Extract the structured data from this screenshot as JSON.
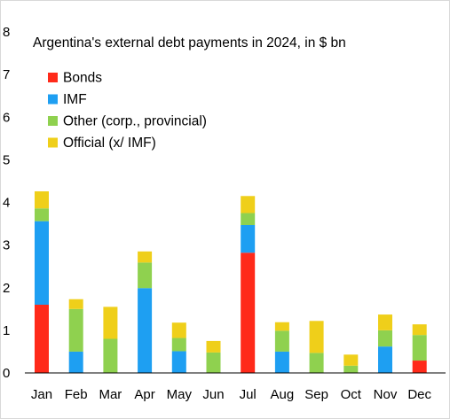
{
  "chart_data": {
    "type": "bar",
    "stacked": true,
    "title": "Argentina's  external debt payments in 2024, in $ bn",
    "xlabel": "",
    "ylabel": "",
    "ylim": [
      0,
      8
    ],
    "yticks": [
      0,
      1,
      2,
      3,
      4,
      5,
      6,
      7,
      8
    ],
    "grid": false,
    "legend_position": "top-left",
    "categories": [
      "Jan",
      "Feb",
      "Mar",
      "Apr",
      "May",
      "Jun",
      "Jul",
      "Aug",
      "Sep",
      "Oct",
      "Nov",
      "Dec"
    ],
    "series": [
      {
        "name": "Bonds",
        "color": "#ff2a1a",
        "values": [
          1.6,
          0,
          0,
          0,
          0,
          0,
          2.82,
          0,
          0,
          0,
          0,
          0.29
        ]
      },
      {
        "name": "IMF",
        "color": "#1e9ff2",
        "values": [
          1.96,
          0.5,
          0,
          1.99,
          0.51,
          0,
          0.65,
          0.5,
          0,
          0,
          0.62,
          0
        ]
      },
      {
        "name": "Other (corp., provincial)",
        "color": "#8fd14f",
        "values": [
          0.3,
          1.0,
          0.8,
          0.6,
          0.31,
          0.48,
          0.28,
          0.49,
          0.47,
          0.17,
          0.38,
          0.6
        ]
      },
      {
        "name": "Official (x/ IMF)",
        "color": "#efcf1a",
        "values": [
          0.4,
          0.23,
          0.75,
          0.26,
          0.36,
          0.27,
          0.4,
          0.2,
          0.75,
          0.26,
          0.37,
          0.25
        ]
      }
    ]
  }
}
